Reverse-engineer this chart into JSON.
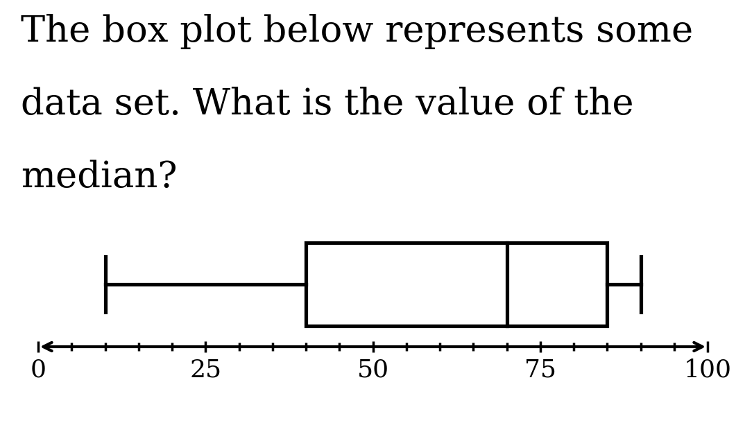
{
  "title_line1": "The box plot below represents some",
  "title_line2": "data set. What is the value of the",
  "title_line3": "median?",
  "title_fontsize": 38,
  "title_fontfamily": "DejaVu Serif",
  "whisker_min": 10,
  "q1": 40,
  "median": 70,
  "q3": 85,
  "whisker_max": 90,
  "axis_min": 0,
  "axis_max": 100,
  "axis_ticks_major": [
    0,
    25,
    50,
    75,
    100
  ],
  "tick_minor_step": 5,
  "box_color": "#ffffff",
  "line_color": "#000000",
  "line_width": 2.5,
  "background_color": "#ffffff",
  "tick_fontsize": 26,
  "tick_fontfamily": "DejaVu Serif"
}
